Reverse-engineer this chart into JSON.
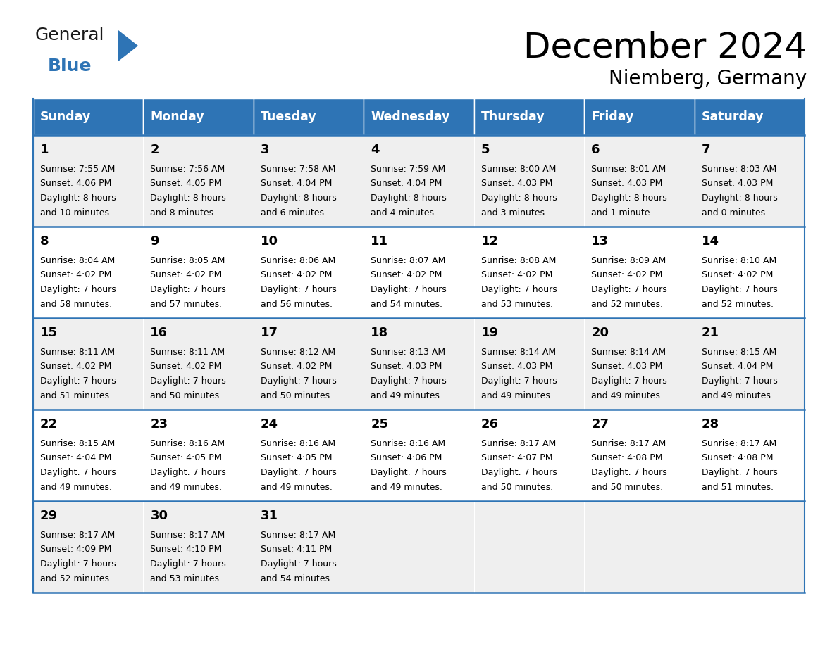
{
  "title": "December 2024",
  "subtitle": "Niemberg, Germany",
  "header_bg": "#2E74B5",
  "header_text_color": "#FFFFFF",
  "day_names": [
    "Sunday",
    "Monday",
    "Tuesday",
    "Wednesday",
    "Thursday",
    "Friday",
    "Saturday"
  ],
  "row_bg_even": "#FFFFFF",
  "row_bg_odd": "#EFEFEF",
  "border_color": "#2E74B5",
  "text_color": "#000000",
  "logo_general_color": "#1a1a1a",
  "logo_blue_color": "#2E74B5",
  "logo_triangle_color": "#2E74B5",
  "days": [
    {
      "day": 1,
      "col": 0,
      "row": 0,
      "sunrise": "7:55 AM",
      "sunset": "4:06 PM",
      "daylight": "8 hours",
      "daylight2": "and 10 minutes."
    },
    {
      "day": 2,
      "col": 1,
      "row": 0,
      "sunrise": "7:56 AM",
      "sunset": "4:05 PM",
      "daylight": "8 hours",
      "daylight2": "and 8 minutes."
    },
    {
      "day": 3,
      "col": 2,
      "row": 0,
      "sunrise": "7:58 AM",
      "sunset": "4:04 PM",
      "daylight": "8 hours",
      "daylight2": "and 6 minutes."
    },
    {
      "day": 4,
      "col": 3,
      "row": 0,
      "sunrise": "7:59 AM",
      "sunset": "4:04 PM",
      "daylight": "8 hours",
      "daylight2": "and 4 minutes."
    },
    {
      "day": 5,
      "col": 4,
      "row": 0,
      "sunrise": "8:00 AM",
      "sunset": "4:03 PM",
      "daylight": "8 hours",
      "daylight2": "and 3 minutes."
    },
    {
      "day": 6,
      "col": 5,
      "row": 0,
      "sunrise": "8:01 AM",
      "sunset": "4:03 PM",
      "daylight": "8 hours",
      "daylight2": "and 1 minute."
    },
    {
      "day": 7,
      "col": 6,
      "row": 0,
      "sunrise": "8:03 AM",
      "sunset": "4:03 PM",
      "daylight": "8 hours",
      "daylight2": "and 0 minutes."
    },
    {
      "day": 8,
      "col": 0,
      "row": 1,
      "sunrise": "8:04 AM",
      "sunset": "4:02 PM",
      "daylight": "7 hours",
      "daylight2": "and 58 minutes."
    },
    {
      "day": 9,
      "col": 1,
      "row": 1,
      "sunrise": "8:05 AM",
      "sunset": "4:02 PM",
      "daylight": "7 hours",
      "daylight2": "and 57 minutes."
    },
    {
      "day": 10,
      "col": 2,
      "row": 1,
      "sunrise": "8:06 AM",
      "sunset": "4:02 PM",
      "daylight": "7 hours",
      "daylight2": "and 56 minutes."
    },
    {
      "day": 11,
      "col": 3,
      "row": 1,
      "sunrise": "8:07 AM",
      "sunset": "4:02 PM",
      "daylight": "7 hours",
      "daylight2": "and 54 minutes."
    },
    {
      "day": 12,
      "col": 4,
      "row": 1,
      "sunrise": "8:08 AM",
      "sunset": "4:02 PM",
      "daylight": "7 hours",
      "daylight2": "and 53 minutes."
    },
    {
      "day": 13,
      "col": 5,
      "row": 1,
      "sunrise": "8:09 AM",
      "sunset": "4:02 PM",
      "daylight": "7 hours",
      "daylight2": "and 52 minutes."
    },
    {
      "day": 14,
      "col": 6,
      "row": 1,
      "sunrise": "8:10 AM",
      "sunset": "4:02 PM",
      "daylight": "7 hours",
      "daylight2": "and 52 minutes."
    },
    {
      "day": 15,
      "col": 0,
      "row": 2,
      "sunrise": "8:11 AM",
      "sunset": "4:02 PM",
      "daylight": "7 hours",
      "daylight2": "and 51 minutes."
    },
    {
      "day": 16,
      "col": 1,
      "row": 2,
      "sunrise": "8:11 AM",
      "sunset": "4:02 PM",
      "daylight": "7 hours",
      "daylight2": "and 50 minutes."
    },
    {
      "day": 17,
      "col": 2,
      "row": 2,
      "sunrise": "8:12 AM",
      "sunset": "4:02 PM",
      "daylight": "7 hours",
      "daylight2": "and 50 minutes."
    },
    {
      "day": 18,
      "col": 3,
      "row": 2,
      "sunrise": "8:13 AM",
      "sunset": "4:03 PM",
      "daylight": "7 hours",
      "daylight2": "and 49 minutes."
    },
    {
      "day": 19,
      "col": 4,
      "row": 2,
      "sunrise": "8:14 AM",
      "sunset": "4:03 PM",
      "daylight": "7 hours",
      "daylight2": "and 49 minutes."
    },
    {
      "day": 20,
      "col": 5,
      "row": 2,
      "sunrise": "8:14 AM",
      "sunset": "4:03 PM",
      "daylight": "7 hours",
      "daylight2": "and 49 minutes."
    },
    {
      "day": 21,
      "col": 6,
      "row": 2,
      "sunrise": "8:15 AM",
      "sunset": "4:04 PM",
      "daylight": "7 hours",
      "daylight2": "and 49 minutes."
    },
    {
      "day": 22,
      "col": 0,
      "row": 3,
      "sunrise": "8:15 AM",
      "sunset": "4:04 PM",
      "daylight": "7 hours",
      "daylight2": "and 49 minutes."
    },
    {
      "day": 23,
      "col": 1,
      "row": 3,
      "sunrise": "8:16 AM",
      "sunset": "4:05 PM",
      "daylight": "7 hours",
      "daylight2": "and 49 minutes."
    },
    {
      "day": 24,
      "col": 2,
      "row": 3,
      "sunrise": "8:16 AM",
      "sunset": "4:05 PM",
      "daylight": "7 hours",
      "daylight2": "and 49 minutes."
    },
    {
      "day": 25,
      "col": 3,
      "row": 3,
      "sunrise": "8:16 AM",
      "sunset": "4:06 PM",
      "daylight": "7 hours",
      "daylight2": "and 49 minutes."
    },
    {
      "day": 26,
      "col": 4,
      "row": 3,
      "sunrise": "8:17 AM",
      "sunset": "4:07 PM",
      "daylight": "7 hours",
      "daylight2": "and 50 minutes."
    },
    {
      "day": 27,
      "col": 5,
      "row": 3,
      "sunrise": "8:17 AM",
      "sunset": "4:08 PM",
      "daylight": "7 hours",
      "daylight2": "and 50 minutes."
    },
    {
      "day": 28,
      "col": 6,
      "row": 3,
      "sunrise": "8:17 AM",
      "sunset": "4:08 PM",
      "daylight": "7 hours",
      "daylight2": "and 51 minutes."
    },
    {
      "day": 29,
      "col": 0,
      "row": 4,
      "sunrise": "8:17 AM",
      "sunset": "4:09 PM",
      "daylight": "7 hours",
      "daylight2": "and 52 minutes."
    },
    {
      "day": 30,
      "col": 1,
      "row": 4,
      "sunrise": "8:17 AM",
      "sunset": "4:10 PM",
      "daylight": "7 hours",
      "daylight2": "and 53 minutes."
    },
    {
      "day": 31,
      "col": 2,
      "row": 4,
      "sunrise": "8:17 AM",
      "sunset": "4:11 PM",
      "daylight": "7 hours",
      "daylight2": "and 54 minutes."
    }
  ]
}
